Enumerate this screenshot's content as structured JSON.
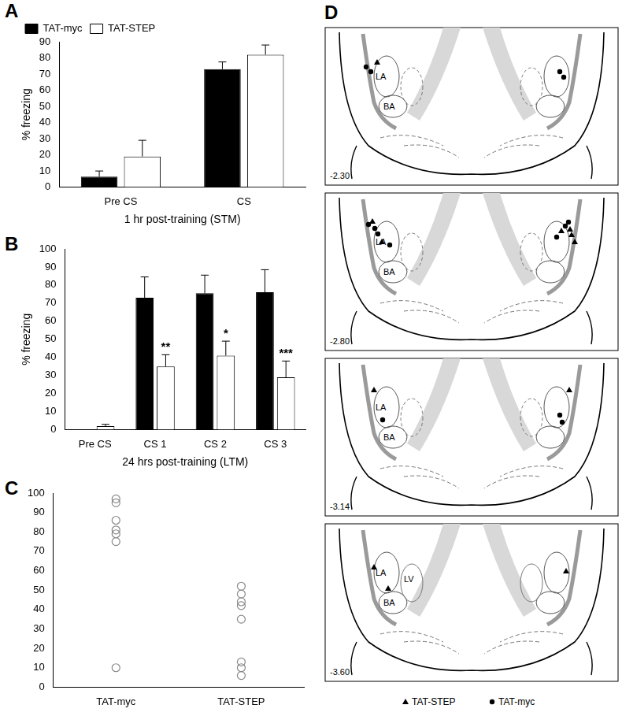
{
  "chart_data": [
    {
      "type": "bar",
      "title": "A",
      "x_label": "1 hr post-training (STM)",
      "y_label": "% freezing",
      "categories": [
        "Pre CS",
        "CS"
      ],
      "series": [
        {
          "name": "TAT-myc",
          "color": "#000000",
          "values": [
            6.5,
            73
          ],
          "errors": [
            3.5,
            4.5
          ]
        },
        {
          "name": "TAT-STEP",
          "color": "#ffffff",
          "values": [
            19,
            82
          ],
          "errors": [
            10,
            6
          ]
        }
      ],
      "ylim": [
        0,
        90
      ],
      "yticks": [
        0,
        10,
        20,
        30,
        40,
        50,
        60,
        70,
        80,
        90
      ],
      "grid": false,
      "legend": "top-left"
    },
    {
      "type": "bar",
      "title": "B",
      "x_label": "24 hrs post-training (LTM)",
      "y_label": "% freezing",
      "categories": [
        "Pre CS",
        "CS 1",
        "CS 2",
        "CS 3"
      ],
      "series": [
        {
          "name": "TAT-myc",
          "color": "#000000",
          "values": [
            0,
            73,
            75.5,
            76
          ],
          "errors": [
            0,
            11.5,
            10,
            12.5
          ]
        },
        {
          "name": "TAT-STEP",
          "color": "#ffffff",
          "values": [
            2,
            35,
            41,
            29
          ],
          "errors": [
            1,
            6.5,
            8,
            9
          ]
        }
      ],
      "annotations": [
        {
          "category": "CS 1",
          "series": "TAT-STEP",
          "text": "**"
        },
        {
          "category": "CS 2",
          "series": "TAT-STEP",
          "text": "*"
        },
        {
          "category": "CS 3",
          "series": "TAT-STEP",
          "text": "***"
        }
      ],
      "ylim": [
        0,
        100
      ],
      "yticks": [
        0,
        10,
        20,
        30,
        40,
        50,
        60,
        70,
        80,
        90,
        100
      ],
      "grid": false
    },
    {
      "type": "scatter",
      "title": "C",
      "categories": [
        "TAT-myc",
        "TAT-STEP"
      ],
      "values": [
        [
          97,
          95,
          86,
          81,
          79,
          75,
          10
        ],
        [
          52,
          48,
          44,
          42,
          35,
          13,
          10,
          6
        ]
      ],
      "color": "#888888",
      "marker": "circle",
      "ylim": [
        0,
        100
      ],
      "yticks": [
        0,
        10,
        20,
        30,
        40,
        50,
        60,
        70,
        80,
        90,
        100
      ],
      "grid": false
    }
  ],
  "panel_d": {
    "title": "D",
    "sections": [
      {
        "label": "-2.30",
        "regions": [
          "LA",
          "BA"
        ]
      },
      {
        "label": "-2.80",
        "regions": [
          "LA",
          "BA"
        ]
      },
      {
        "label": "-3.14",
        "regions": [
          "LA",
          "BA"
        ]
      },
      {
        "label": "-3.60",
        "regions": [
          "LA",
          "LV",
          "BA"
        ]
      }
    ],
    "markers": [
      {
        "name": "TAT-STEP",
        "marker": "triangle"
      },
      {
        "name": "TAT-myc",
        "marker": "circle"
      }
    ]
  }
}
